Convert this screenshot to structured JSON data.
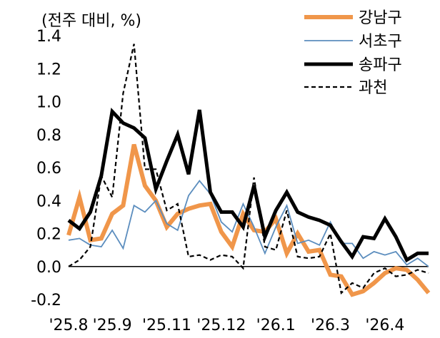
{
  "chart_data": {
    "type": "line",
    "ylabel": "(전주 대비, %)",
    "ylim": [
      -0.2,
      1.4
    ],
    "yticks": [
      "1.4",
      "1.2",
      "1.0",
      "0.8",
      "0.6",
      "0.4",
      "0.2",
      "0.0",
      "-0.2"
    ],
    "ytick_values": [
      1.4,
      1.2,
      1.0,
      0.8,
      0.6,
      0.4,
      0.2,
      0.0,
      -0.2
    ],
    "xlabels": [
      "'25.8",
      "'25.9",
      "'25.11",
      "'25.12",
      "'26.1",
      "'26.3",
      "'26.4"
    ],
    "xlabel_index": [
      0,
      4,
      9,
      14,
      19,
      24,
      29
    ],
    "n_points": 34,
    "grid": false,
    "legend_position": "top-right",
    "series": [
      {
        "name": "강남구",
        "color": "#F0964A",
        "style": "thick",
        "values": [
          0.19,
          0.42,
          0.16,
          0.17,
          0.32,
          0.37,
          0.74,
          0.49,
          0.4,
          0.24,
          0.32,
          0.35,
          0.37,
          0.38,
          0.21,
          0.12,
          0.32,
          0.22,
          0.21,
          0.29,
          0.08,
          0.2,
          0.09,
          0.1,
          -0.05,
          -0.06,
          -0.17,
          -0.15,
          -0.1,
          -0.04,
          -0.01,
          -0.02,
          -0.08,
          -0.16
        ]
      },
      {
        "name": "서초구",
        "color": "#5B8DBE",
        "style": "thin",
        "values": [
          0.16,
          0.17,
          0.13,
          0.12,
          0.22,
          0.11,
          0.37,
          0.33,
          0.4,
          0.26,
          0.22,
          0.43,
          0.52,
          0.44,
          0.27,
          0.21,
          0.38,
          0.24,
          0.08,
          0.24,
          0.37,
          0.14,
          0.16,
          0.13,
          0.27,
          0.14,
          0.14,
          0.05,
          0.09,
          0.07,
          0.09,
          0.01,
          0.05,
          0.0
        ]
      },
      {
        "name": "송파구",
        "color": "#000000",
        "style": "thicker",
        "values": [
          0.28,
          0.23,
          0.33,
          0.55,
          0.94,
          0.87,
          0.84,
          0.78,
          0.47,
          0.64,
          0.8,
          0.56,
          0.95,
          0.45,
          0.33,
          0.33,
          0.24,
          0.49,
          0.18,
          0.34,
          0.45,
          0.33,
          0.3,
          0.28,
          0.25,
          0.15,
          0.06,
          0.18,
          0.17,
          0.29,
          0.18,
          0.04,
          0.08,
          0.08
        ]
      },
      {
        "name": "과천",
        "color": "#000000",
        "style": "dashed",
        "values": [
          0.0,
          0.04,
          0.12,
          0.55,
          0.42,
          1.05,
          1.35,
          0.59,
          0.59,
          0.34,
          0.38,
          0.06,
          0.07,
          0.04,
          0.07,
          0.06,
          -0.01,
          0.54,
          0.12,
          0.1,
          0.34,
          0.06,
          0.05,
          0.06,
          0.2,
          -0.16,
          -0.1,
          -0.13,
          -0.04,
          -0.01,
          -0.06,
          -0.05,
          -0.02,
          -0.04
        ]
      }
    ]
  }
}
